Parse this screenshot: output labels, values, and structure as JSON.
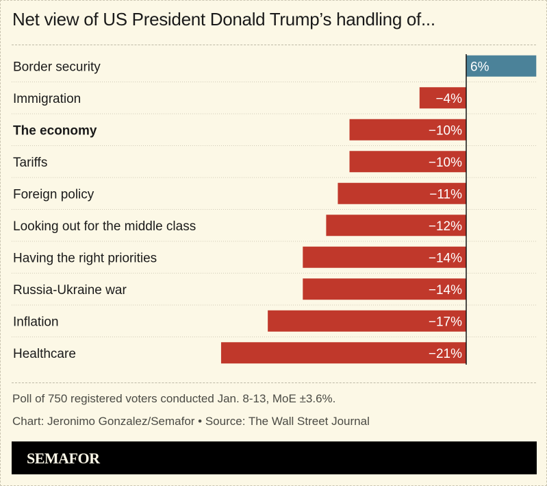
{
  "title": "Net view of US President Donald Trump’s handling of...",
  "chart_data": {
    "type": "bar",
    "orientation": "horizontal",
    "title": "Net view of US President Donald Trump’s handling of...",
    "categories": [
      "Border security",
      "Immigration",
      "The economy",
      "Tariffs",
      "Foreign policy",
      "Looking out for the middle class",
      "Having the right priorities",
      "Russia-Ukraine war",
      "Inflation",
      "Healthcare"
    ],
    "values": [
      6,
      -4,
      -10,
      -10,
      -11,
      -12,
      -14,
      -14,
      -17,
      -21
    ],
    "value_labels": [
      "6%",
      "−4%",
      "−10%",
      "−10%",
      "−11%",
      "−12%",
      "−14%",
      "−14%",
      "−17%",
      "−21%"
    ],
    "bold_category": "The economy",
    "colors": {
      "positive": "#4b8299",
      "negative": "#c0382b"
    },
    "xlim": [
      -21,
      6
    ],
    "grid": false
  },
  "footer": {
    "note": "Poll of 750 registered voters conducted Jan. 8-13, MoE ±3.6%.",
    "credit": "Chart: Jeronimo Gonzalez/Semafor • Source: The Wall Street Journal"
  },
  "brand": "SEMAFOR"
}
